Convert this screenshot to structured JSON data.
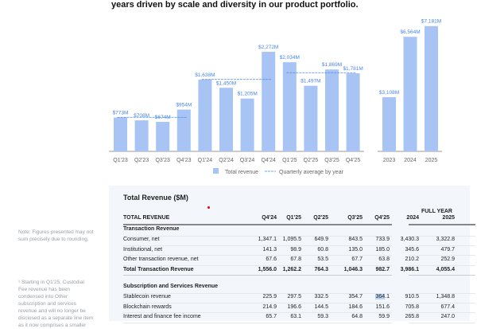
{
  "headline": "years driven by scale and diversity in our product portfolio.",
  "chart_data": [
    {
      "type": "bar",
      "categories": [
        "Q1'23",
        "Q2'23",
        "Q3'23",
        "Q4'23",
        "Q1'24",
        "Q2'24",
        "Q3'24",
        "Q4'24",
        "Q1'25",
        "Q2'25",
        "Q3'25",
        "Q4'25"
      ],
      "values": [
        773,
        708,
        674,
        954,
        1638,
        1450,
        1205,
        2272,
        2034,
        1497,
        1869,
        1781
      ],
      "labels": [
        "$773M",
        "$708M",
        "$674M",
        "$954M",
        "$1,638M",
        "$1,450M",
        "$1,205M",
        "$2,272M",
        "$2,034M",
        "$1,497M",
        "$1,869M",
        "$1,781M"
      ],
      "quarterly_average_by_year": [
        {
          "year": "2023",
          "value": 777
        },
        {
          "year": "2024",
          "value": 1641
        },
        {
          "year": "2025",
          "value": 1795
        }
      ],
      "legend": [
        "Total revenue",
        "Quarterly average by year"
      ],
      "legend_position": "bottom-right",
      "unit": "$M",
      "color": "#a8c4f4",
      "label_color": "#4a86e8"
    },
    {
      "type": "bar",
      "categories": [
        "2023",
        "2024",
        "2025"
      ],
      "values": [
        3108,
        6564,
        7181
      ],
      "labels": [
        "$3,108M",
        "$6,564M",
        "$7,181M"
      ],
      "unit": "$M"
    }
  ],
  "notes": {
    "rounding": "Note: Figures presented may not sum precisely due to rounding.",
    "footnote": "¹ Starting in Q1'25, Custodial Fee revenue has been condensed into Other subscription and services revenue and will no longer be disclosed as a separate line item as it now comprises a smaller"
  },
  "table": {
    "title": "Total Revenue ($M)",
    "full_year": "FULL YEAR",
    "columns": [
      "TOTAL REVENUE",
      "Q4'24",
      "Q1'25",
      "Q2'25",
      "Q3'25",
      "Q4'25",
      "2024",
      "2025"
    ],
    "rows": [
      {
        "type": "section",
        "label": "Transaction Revenue"
      },
      {
        "label": "Consumer, net",
        "values": [
          "1,347.1",
          "1,095.5",
          "649.9",
          "843.5",
          "733.9",
          "3,430.3",
          "3,322.8"
        ]
      },
      {
        "label": "Institutional, net",
        "values": [
          "141.3",
          "98.9",
          "60.8",
          "135.0",
          "185.0",
          "345.6",
          "479.7"
        ]
      },
      {
        "label": "Other transaction revenue, net",
        "values": [
          "67.6",
          "67.8",
          "53.5",
          "67.7",
          "63.8",
          "210.2",
          "252.9"
        ]
      },
      {
        "type": "total",
        "label": "Total Transaction Revenue",
        "values": [
          "1,556.0",
          "1,262.2",
          "764.3",
          "1,046.3",
          "982.7",
          "3,986.1",
          "4,055.4"
        ]
      },
      {
        "type": "section",
        "label": "Subscription and Services Revenue"
      },
      {
        "label": "Stablecoin revenue",
        "values": [
          "225.9",
          "297.5",
          "332.5",
          "354.7",
          "364.1",
          "910.5",
          "1,348.8"
        ]
      },
      {
        "label": "Blockchain rewards",
        "values": [
          "214.9",
          "196.6",
          "144.5",
          "184.6",
          "151.6",
          "705.8",
          "677.4"
        ]
      },
      {
        "label": "Interest and finance fee income",
        "values": [
          "65.7",
          "63.1",
          "59.3",
          "64.8",
          "59.9",
          "265.8",
          "247.0"
        ]
      }
    ]
  }
}
